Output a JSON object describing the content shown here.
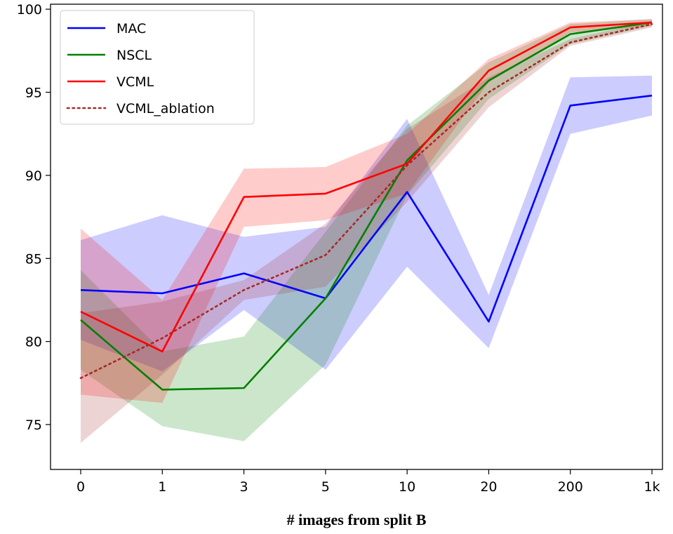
{
  "chart_data": {
    "type": "line",
    "title": "",
    "xlabel": "# images from split B",
    "ylabel": "",
    "categories": [
      "0",
      "1",
      "3",
      "5",
      "10",
      "20",
      "200",
      "1k"
    ],
    "ylim": [
      72.3,
      100.3
    ],
    "yticks": [
      75,
      80,
      85,
      90,
      95,
      100
    ],
    "legend_position": "upper-left",
    "series": [
      {
        "name": "MAC",
        "color": "#0000ff",
        "style": "solid",
        "values": [
          83.1,
          82.9,
          84.1,
          82.6,
          89.0,
          81.2,
          94.2,
          94.8
        ],
        "lower": [
          80.1,
          78.2,
          81.9,
          78.3,
          84.5,
          79.6,
          92.5,
          93.6
        ],
        "upper": [
          86.1,
          87.6,
          86.3,
          86.9,
          93.4,
          82.8,
          95.9,
          96.0
        ]
      },
      {
        "name": "NSCL",
        "color": "#008000",
        "style": "solid",
        "values": [
          81.3,
          77.1,
          77.2,
          82.6,
          90.9,
          95.7,
          98.5,
          99.2
        ],
        "lower": [
          78.3,
          74.9,
          74.0,
          78.6,
          88.8,
          94.6,
          97.9,
          99.0
        ],
        "upper": [
          84.3,
          79.4,
          80.3,
          86.6,
          93.0,
          96.8,
          99.1,
          99.4
        ]
      },
      {
        "name": "VCML",
        "color": "#ff0000",
        "style": "solid",
        "values": [
          81.8,
          79.4,
          88.7,
          88.9,
          90.7,
          96.3,
          98.9,
          99.2
        ],
        "lower": [
          76.8,
          76.3,
          86.9,
          87.3,
          88.9,
          95.6,
          98.6,
          99.0
        ],
        "upper": [
          86.8,
          82.5,
          90.4,
          90.5,
          92.5,
          97.0,
          99.2,
          99.4
        ]
      },
      {
        "name": "VCML_ablation",
        "color": "#a52a2a",
        "style": "dotted",
        "values": [
          77.8,
          80.2,
          83.1,
          85.2,
          90.6,
          95.0,
          98.0,
          99.1
        ],
        "lower": [
          73.9,
          78.0,
          82.5,
          83.3,
          88.4,
          94.1,
          97.8,
          98.9
        ],
        "upper": [
          81.7,
          82.4,
          83.7,
          87.1,
          92.8,
          95.9,
          98.2,
          99.3
        ]
      }
    ]
  }
}
